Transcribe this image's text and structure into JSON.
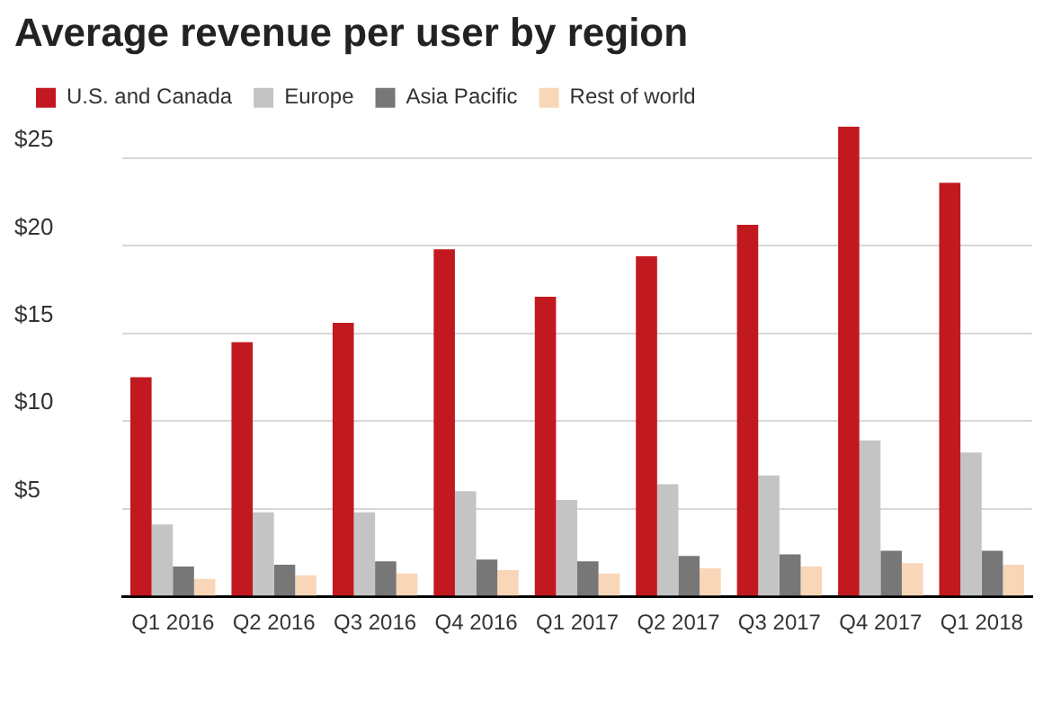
{
  "chart_data": {
    "type": "bar",
    "title": "Average revenue per user by region",
    "categories": [
      "Q1 2016",
      "Q2 2016",
      "Q3 2016",
      "Q4 2016",
      "Q1 2017",
      "Q2 2017",
      "Q3 2017",
      "Q4 2017",
      "Q1 2018"
    ],
    "series": [
      {
        "name": "U.S. and Canada",
        "color": "#c1191f",
        "values": [
          12.5,
          14.5,
          15.6,
          19.8,
          17.1,
          19.4,
          21.2,
          26.8,
          23.6
        ]
      },
      {
        "name": "Europe",
        "color": "#c4c4c4",
        "values": [
          4.1,
          4.8,
          4.8,
          6.0,
          5.5,
          6.4,
          6.9,
          8.9,
          8.2
        ]
      },
      {
        "name": "Asia Pacific",
        "color": "#777777",
        "values": [
          1.7,
          1.8,
          2.0,
          2.1,
          2.0,
          2.3,
          2.4,
          2.6,
          2.6
        ]
      },
      {
        "name": "Rest of world",
        "color": "#f9d6b8",
        "values": [
          1.0,
          1.2,
          1.3,
          1.5,
          1.3,
          1.6,
          1.7,
          1.9,
          1.8
        ]
      }
    ],
    "yticks": [
      {
        "value": 0,
        "label": null
      },
      {
        "value": 5,
        "label": "$5"
      },
      {
        "value": 10,
        "label": "$10"
      },
      {
        "value": 15,
        "label": "$15"
      },
      {
        "value": 20,
        "label": "$20"
      },
      {
        "value": 25,
        "label": "$25"
      }
    ],
    "ylim": [
      0,
      26.8
    ],
    "grid": "y",
    "legend": "top left"
  }
}
